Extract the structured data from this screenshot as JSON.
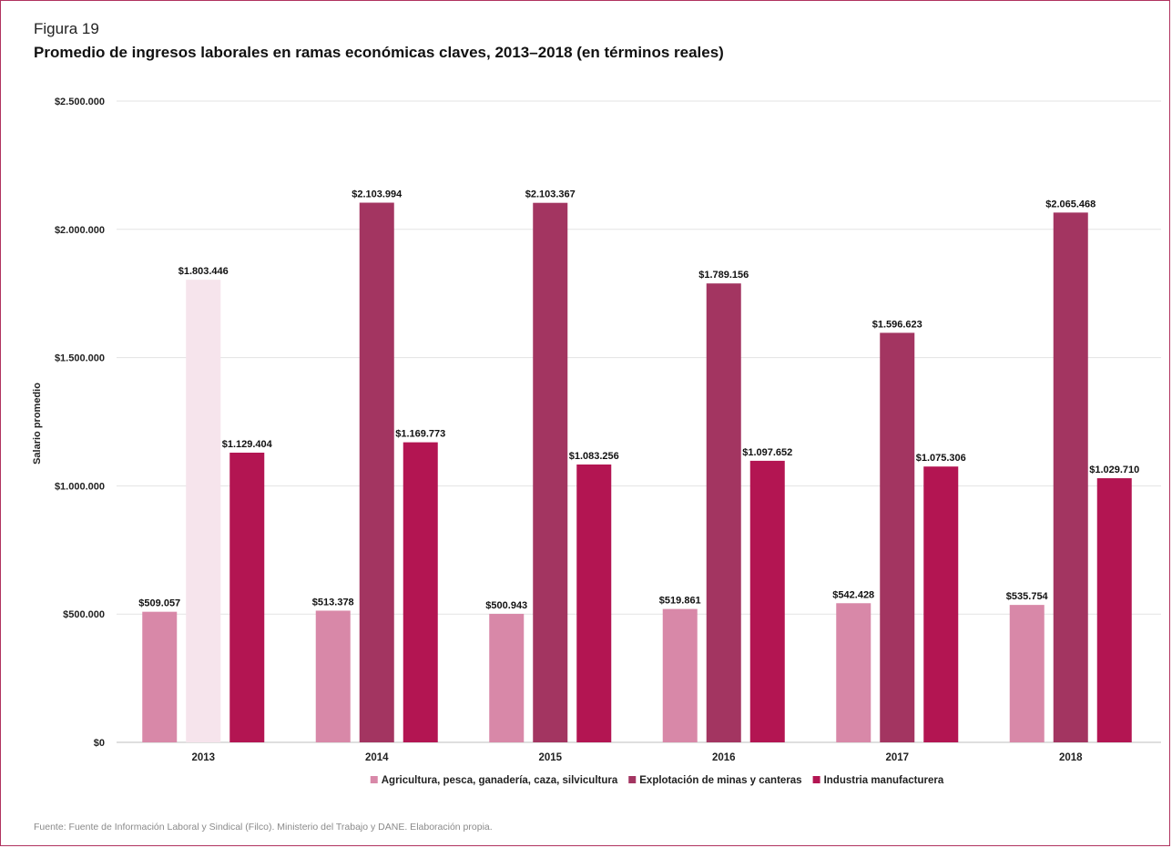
{
  "figure": {
    "label": "Figura 19",
    "title": "Promedio de ingresos laborales en ramas económicas claves, 2013–2018 (en términos reales)",
    "source": "Fuente: Fuente de Información Laboral y Sindical (Filco). Ministerio del Trabajo y DANE. Elaboración propia."
  },
  "chart_data": {
    "type": "bar",
    "title": "Promedio de ingresos laborales en ramas económicas claves, 2013–2018 (en términos reales)",
    "xlabel": "",
    "ylabel": "Salario promedio",
    "ylim": [
      0,
      2500000
    ],
    "yticks": [
      0,
      500000,
      1000000,
      1500000,
      2000000,
      2500000
    ],
    "ytick_labels": [
      "$0",
      "$500.000",
      "$1.000.000",
      "$1.500.000",
      "$2.000.000",
      "$2.500.000"
    ],
    "grid": true,
    "legend_position": "bottom",
    "categories": [
      "2013",
      "2014",
      "2015",
      "2016",
      "2017",
      "2018"
    ],
    "series": [
      {
        "name": "Agricultura, pesca, ganadería, caza, silvicultura",
        "color": "#d888a8",
        "values": [
          509057,
          513378,
          500943,
          519861,
          542428,
          535754
        ],
        "labels": [
          "$509.057",
          "$513.378",
          "$500.943",
          "$519.861",
          "$542.428",
          "$535.754"
        ]
      },
      {
        "name": "Explotación de minas y  canteras",
        "color": "#a33561",
        "colors_override": {
          "0": "#f6e4ec"
        },
        "values": [
          1803446,
          2103994,
          2103367,
          1789156,
          1596623,
          2065468
        ],
        "labels": [
          "$1.803.446",
          "$2.103.994",
          "$2.103.367",
          "$1.789.156",
          "$1.596.623",
          "$2.065.468"
        ]
      },
      {
        "name": "Industria manufacturera",
        "color": "#b31552",
        "values": [
          1129404,
          1169773,
          1083256,
          1097652,
          1075306,
          1029710
        ],
        "labels": [
          "$1.129.404",
          "$1.169.773",
          "$1.083.256",
          "$1.097.652",
          "$1.075.306",
          "$1.029.710"
        ]
      }
    ]
  }
}
